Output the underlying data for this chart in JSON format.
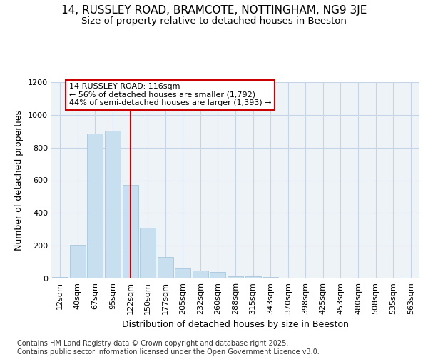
{
  "title": "14, RUSSLEY ROAD, BRAMCOTE, NOTTINGHAM, NG9 3JE",
  "subtitle": "Size of property relative to detached houses in Beeston",
  "xlabel": "Distribution of detached houses by size in Beeston",
  "ylabel": "Number of detached properties",
  "footer_line1": "Contains HM Land Registry data © Crown copyright and database right 2025.",
  "footer_line2": "Contains public sector information licensed under the Open Government Licence v3.0.",
  "categories": [
    "12sqm",
    "40sqm",
    "67sqm",
    "95sqm",
    "122sqm",
    "150sqm",
    "177sqm",
    "205sqm",
    "232sqm",
    "260sqm",
    "288sqm",
    "315sqm",
    "343sqm",
    "370sqm",
    "398sqm",
    "425sqm",
    "453sqm",
    "480sqm",
    "508sqm",
    "535sqm",
    "563sqm"
  ],
  "values": [
    10,
    205,
    885,
    905,
    570,
    310,
    130,
    62,
    48,
    40,
    12,
    12,
    10,
    2,
    0,
    0,
    0,
    0,
    0,
    0,
    4
  ],
  "bar_color": "#c8dff0",
  "bar_edge_color": "#a0c0d8",
  "vline_x_index": 4,
  "vline_color": "#cc0000",
  "annotation_line1": "14 RUSSLEY ROAD: 116sqm",
  "annotation_line2": "← 56% of detached houses are smaller (1,792)",
  "annotation_line3": "44% of semi-detached houses are larger (1,393) →",
  "annotation_box_color": "#cc0000",
  "ylim": [
    0,
    1200
  ],
  "yticks": [
    0,
    200,
    400,
    600,
    800,
    1000,
    1200
  ],
  "grid_color": "#c5d5e5",
  "bg_color": "#eef3f8",
  "title_fontsize": 11,
  "subtitle_fontsize": 9.5,
  "axis_label_fontsize": 9,
  "tick_fontsize": 8,
  "footer_fontsize": 7,
  "annotation_fontsize": 8
}
